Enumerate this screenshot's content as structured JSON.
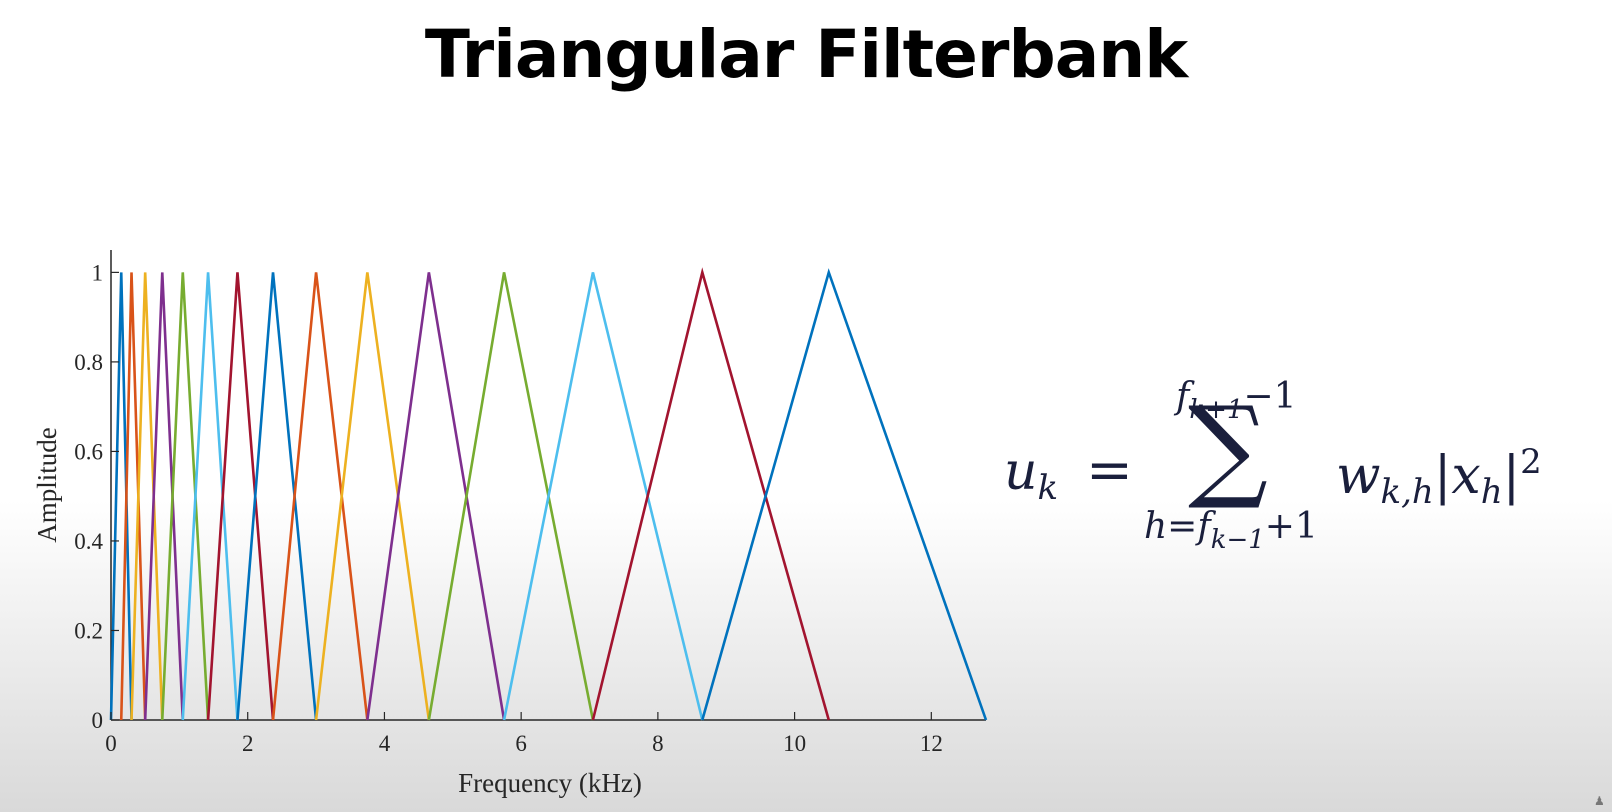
{
  "slide": {
    "title": "Triangular Filterbank"
  },
  "chart_data": {
    "type": "line",
    "title": "",
    "xlabel": "Frequency (kHz)",
    "ylabel": "Amplitude",
    "xlim": [
      0,
      12.8
    ],
    "ylim": [
      0,
      1.05
    ],
    "x_ticks": [
      0,
      2,
      4,
      6,
      8,
      10,
      12
    ],
    "y_ticks": [
      0,
      0.2,
      0.4,
      0.6,
      0.8,
      1
    ],
    "grid": false,
    "legend": "none",
    "edges": [
      0,
      0.15,
      0.3,
      0.5,
      0.75,
      1.05,
      1.42,
      1.85,
      2.37,
      3.0,
      3.75,
      4.65,
      5.75,
      7.05,
      8.65,
      10.5,
      12.8
    ],
    "colors": [
      "#0072bd",
      "#d95319",
      "#edb120",
      "#7e2f8e",
      "#77ac30",
      "#4dbeee",
      "#a2142f"
    ],
    "series": [
      {
        "x": [
          0,
          0.15,
          0.3
        ],
        "y": [
          0,
          1,
          0
        ]
      },
      {
        "x": [
          0.15,
          0.3,
          0.5
        ],
        "y": [
          0,
          1,
          0
        ]
      },
      {
        "x": [
          0.3,
          0.5,
          0.75
        ],
        "y": [
          0,
          1,
          0
        ]
      },
      {
        "x": [
          0.5,
          0.75,
          1.05
        ],
        "y": [
          0,
          1,
          0
        ]
      },
      {
        "x": [
          0.75,
          1.05,
          1.42
        ],
        "y": [
          0,
          1,
          0
        ]
      },
      {
        "x": [
          1.05,
          1.42,
          1.85
        ],
        "y": [
          0,
          1,
          0
        ]
      },
      {
        "x": [
          1.42,
          1.85,
          2.37
        ],
        "y": [
          0,
          1,
          0
        ]
      },
      {
        "x": [
          1.85,
          2.37,
          3.0
        ],
        "y": [
          0,
          1,
          0
        ]
      },
      {
        "x": [
          2.37,
          3.0,
          3.75
        ],
        "y": [
          0,
          1,
          0
        ]
      },
      {
        "x": [
          3.0,
          3.75,
          4.65
        ],
        "y": [
          0,
          1,
          0
        ]
      },
      {
        "x": [
          3.75,
          4.65,
          5.75
        ],
        "y": [
          0,
          1,
          0
        ]
      },
      {
        "x": [
          4.65,
          5.75,
          7.05
        ],
        "y": [
          0,
          1,
          0
        ]
      },
      {
        "x": [
          5.75,
          7.05,
          8.65
        ],
        "y": [
          0,
          1,
          0
        ]
      },
      {
        "x": [
          7.05,
          8.65,
          10.5
        ],
        "y": [
          0,
          1,
          0
        ]
      },
      {
        "x": [
          8.65,
          10.5,
          12.8
        ],
        "y": [
          0,
          1,
          0
        ]
      }
    ]
  },
  "formula": {
    "lhs_var": "u",
    "lhs_sub": "k",
    "equals": "=",
    "upper_var": "f",
    "upper_sub": "k+1",
    "upper_rest": "−1",
    "sigma": "∑",
    "lower_var": "h=f",
    "lower_sub": "k−1",
    "lower_rest": "+1",
    "weight_var": "w",
    "weight_sub": "k,h",
    "bar": "|",
    "signal_var": "x",
    "signal_sub": "h",
    "power": "2"
  },
  "icons": {
    "corner": "person-icon"
  }
}
